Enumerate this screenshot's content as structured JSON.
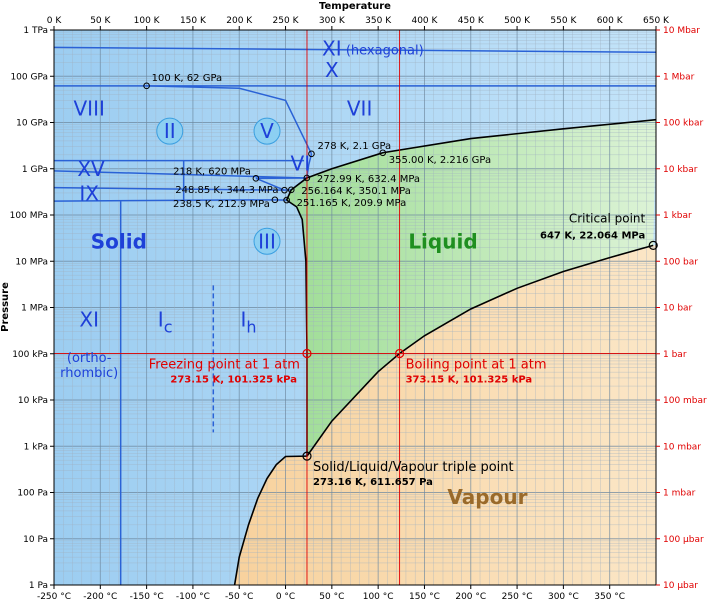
{
  "chart_data": {
    "type": "phase-diagram",
    "title": "",
    "xlabel": "Temperature",
    "ylabel": "Pressure",
    "x_range_K": [
      0,
      650
    ],
    "y_range_Pa": [
      1,
      1000000000000
    ],
    "y_scale": "log",
    "grid": true,
    "top_ticks": [
      "0 K",
      "50 K",
      "100 K",
      "150 K",
      "200 K",
      "250 K",
      "300 K",
      "350 K",
      "400 K",
      "450 K",
      "500 K",
      "550 K",
      "600 K",
      "650 K"
    ],
    "bottom_ticks": [
      {
        "x": 0,
        "label": "-250 °C"
      },
      {
        "x": 50,
        "label": "-200 °C"
      },
      {
        "x": 100,
        "label": "-150 °C"
      },
      {
        "x": 150,
        "label": "-100 °C"
      },
      {
        "x": 200,
        "label": "-50 °C"
      },
      {
        "x": 250,
        "label": "0 °C"
      },
      {
        "x": 300,
        "label": "50 °C"
      },
      {
        "x": 350,
        "label": "100 °C"
      },
      {
        "x": 400,
        "label": "150 °C"
      },
      {
        "x": 450,
        "label": "200 °C"
      },
      {
        "x": 500,
        "label": "250 °C"
      },
      {
        "x": 550,
        "label": "300 °C"
      },
      {
        "x": 600,
        "label": "350 °C"
      }
    ],
    "left_ticks": [
      {
        "y": 1000000000000.0,
        "label": "1 TPa"
      },
      {
        "y": 100000000000.0,
        "label": "100 GPa"
      },
      {
        "y": 10000000000.0,
        "label": "10 GPa"
      },
      {
        "y": 1000000000.0,
        "label": "1 GPa"
      },
      {
        "y": 100000000.0,
        "label": "100 MPa"
      },
      {
        "y": 10000000.0,
        "label": "10 MPa"
      },
      {
        "y": 1000000.0,
        "label": "1 MPa"
      },
      {
        "y": 100000.0,
        "label": "100 kPa"
      },
      {
        "y": 10000.0,
        "label": "10 kPa"
      },
      {
        "y": 1000.0,
        "label": "1 kPa"
      },
      {
        "y": 100.0,
        "label": "100 Pa"
      },
      {
        "y": 10.0,
        "label": "10 Pa"
      },
      {
        "y": 1,
        "label": "1 Pa"
      }
    ],
    "right_ticks": [
      {
        "y": 1000000000000.0,
        "label": "10 Mbar"
      },
      {
        "y": 100000000000.0,
        "label": "1 Mbar"
      },
      {
        "y": 10000000000.0,
        "label": "100 kbar"
      },
      {
        "y": 1000000000.0,
        "label": "10 kbar"
      },
      {
        "y": 100000000.0,
        "label": "1 kbar"
      },
      {
        "y": 10000000.0,
        "label": "100 bar"
      },
      {
        "y": 1000000.0,
        "label": "10 bar"
      },
      {
        "y": 100000.0,
        "label": "1 bar"
      },
      {
        "y": 10000.0,
        "label": "100 mbar"
      },
      {
        "y": 1000.0,
        "label": "10 mbar"
      },
      {
        "y": 100.0,
        "label": "1 mbar"
      },
      {
        "y": 10.0,
        "label": "100 µbar"
      },
      {
        "y": 1,
        "label": "10 µbar"
      }
    ],
    "regions": [
      {
        "name": "solid",
        "color": "#aad4f5"
      },
      {
        "name": "liquid",
        "color": "#b8e8b0"
      },
      {
        "name": "vapour",
        "color": "#f8d7a6"
      }
    ],
    "curves": {
      "sublimation": [
        [
          195,
          1
        ],
        [
          200,
          4
        ],
        [
          210,
          20
        ],
        [
          220,
          75
        ],
        [
          230,
          200
        ],
        [
          240,
          400
        ],
        [
          250,
          600
        ],
        [
          273.16,
          611.657
        ]
      ],
      "vaporization": [
        [
          273.16,
          611.657
        ],
        [
          300,
          3500
        ],
        [
          350,
          41000
        ],
        [
          373.15,
          101325
        ],
        [
          400,
          245000
        ],
        [
          450,
          930000
        ],
        [
          500,
          2600000
        ],
        [
          550,
          6000000
        ],
        [
          600,
          12000000
        ],
        [
          647,
          22064000
        ]
      ],
      "melting_Ih": [
        [
          273.16,
          611.657
        ],
        [
          273.15,
          101325
        ],
        [
          272,
          10000000
        ],
        [
          268,
          80000000
        ],
        [
          262,
          150000000
        ],
        [
          251.165,
          209900000
        ]
      ],
      "melting_high": [
        [
          251.165,
          209900000
        ],
        [
          256.164,
          350100000
        ],
        [
          272.99,
          632400000
        ],
        [
          300,
          1000000000
        ],
        [
          355,
          2216000000
        ],
        [
          450,
          4500000000
        ],
        [
          550,
          7300000000
        ],
        [
          650,
          11500000000
        ]
      ],
      "blue_boundaries": [
        [
          [
            0,
            420000000000
          ],
          [
            650,
            330000000000
          ]
        ],
        [
          [
            0,
            62000000000
          ],
          [
            650,
            62000000000
          ]
        ],
        [
          [
            100,
            62000000000
          ],
          [
            200,
            55000000000
          ],
          [
            250,
            30000000000
          ],
          [
            278,
            2100000000
          ]
        ],
        [
          [
            278,
            2100000000
          ],
          [
            275,
            1200000000
          ],
          [
            272.99,
            632400000
          ]
        ],
        [
          [
            0,
            1500000000
          ],
          [
            270,
            1500000000
          ]
        ],
        [
          [
            0,
            900000000
          ],
          [
            272.99,
            632400000
          ]
        ],
        [
          [
            0,
            390000000
          ],
          [
            248.85,
            344300000
          ]
        ],
        [
          [
            0,
            200000000
          ],
          [
            238.5,
            212900000
          ]
        ],
        [
          [
            218,
            620000000
          ],
          [
            248.85,
            344300000
          ]
        ],
        [
          [
            248.85,
            344300000
          ],
          [
            256.164,
            350100000
          ]
        ],
        [
          [
            238.5,
            212900000
          ],
          [
            251.165,
            209900000
          ]
        ],
        [
          [
            218,
            620000000
          ],
          [
            272.99,
            632400000
          ]
        ],
        [
          [
            256.164,
            350100000
          ],
          [
            272.99,
            632400000
          ]
        ],
        [
          [
            72,
            200000000
          ],
          [
            72,
            1
          ]
        ],
        [
          [
            140,
            1500000000
          ],
          [
            140,
            200000000
          ]
        ]
      ],
      "dashed": [
        [
          [
            172,
            3000000
          ],
          [
            172,
            2000
          ]
        ]
      ]
    },
    "points": [
      {
        "x": 100,
        "y": 62000000000,
        "label": "100 K, 62 GPa"
      },
      {
        "x": 278,
        "y": 2100000000,
        "label": "278 K, 2.1 GPa"
      },
      {
        "x": 355,
        "y": 2216000000,
        "label": "355.00 K, 2.216 GPa"
      },
      {
        "x": 218,
        "y": 620000000,
        "label": "218 K, 620 MPa"
      },
      {
        "x": 272.99,
        "y": 632400000,
        "label": "272.99 K, 632.4 MPa"
      },
      {
        "x": 248.85,
        "y": 344300000,
        "label": "248.85 K, 344.3 MPa"
      },
      {
        "x": 256.164,
        "y": 350100000,
        "label": "256.164 K, 350.1 MPa"
      },
      {
        "x": 238.5,
        "y": 212900000,
        "label": "238.5 K, 212.9 MPa"
      },
      {
        "x": 251.165,
        "y": 209900000,
        "label": "251.165 K, 209.9 MPa"
      }
    ],
    "special_points": [
      {
        "x": 647,
        "y": 22064000,
        "title": "Critical point",
        "value": "647 K, 22.064 MPa"
      },
      {
        "x": 273.15,
        "y": 101325,
        "title": "Freezing point at 1 atm",
        "value": "273.15 K, 101.325 kPa"
      },
      {
        "x": 373.15,
        "y": 101325,
        "title": "Boiling point at 1 atm",
        "value": "373.15 K, 101.325 kPa"
      },
      {
        "x": 273.16,
        "y": 611.657,
        "title": "Solid/Liquid/Vapour triple point",
        "value": "273.16 K, 611.657 Pa"
      }
    ],
    "reference_lines": {
      "x": [
        273.15,
        373.15
      ],
      "y": [
        101325
      ]
    },
    "phase_labels": [
      {
        "text": "XI",
        "sub": "(hexagonal)",
        "x": 300,
        "y": 400000000000
      },
      {
        "text": "X",
        "x": 300,
        "y": 135000000000
      },
      {
        "text": "VIII",
        "x": 38,
        "y": 20000000000
      },
      {
        "text": "VII",
        "x": 330,
        "y": 20000000000
      },
      {
        "text": "XV",
        "x": 40,
        "y": 1000000000
      },
      {
        "text": "IX",
        "x": 38,
        "y": 290000000
      },
      {
        "text": "VI",
        "x": 266,
        "y": 1300000000
      },
      {
        "text": "II",
        "x": 125,
        "y": 6500000000,
        "circle": true
      },
      {
        "text": "V",
        "x": 230,
        "y": 6500000000,
        "circle": true
      },
      {
        "text": "III",
        "x": 230,
        "y": 27000000,
        "circle": true
      },
      {
        "text": "Solid",
        "x": 70,
        "y": 27000000
      },
      {
        "text": "Liquid",
        "x": 420,
        "y": 27000000
      },
      {
        "text": "Vapour",
        "x": 468,
        "y": 80
      },
      {
        "text": "XI",
        "x": 38,
        "y": 550000
      },
      {
        "text": "(ortho-",
        "x": 38,
        "y": 95000
      },
      {
        "text": "rhombic)",
        "x": 38,
        "y": 45000
      },
      {
        "text": "I",
        "sub": "c",
        "x": 120,
        "y": 550000
      },
      {
        "text": "I",
        "sub": "h",
        "x": 210,
        "y": 550000
      }
    ],
    "colors": {
      "solid": "#aad4f5",
      "liquid": "#b8e8b0",
      "vapour": "#f8d7a6",
      "blue_line": "#2a62d6",
      "blue_text": "#1e40d8",
      "green_text": "#1f8f1f",
      "brown_text": "#9a6a2a",
      "red": "#e00000",
      "circle_fill": "#8ccff2",
      "circle_stroke": "#3b9fe0"
    }
  }
}
